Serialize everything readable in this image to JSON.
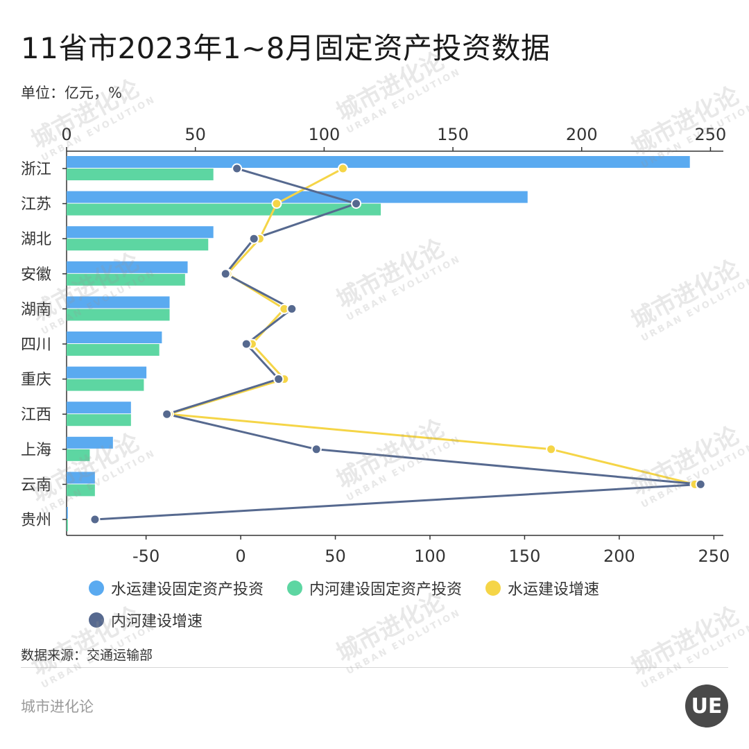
{
  "title": "11省市2023年1~8月固定资产投资数据",
  "unit": "单位：亿元，%",
  "source": "数据来源：交通运输部",
  "footer_brand": "城市进化论",
  "logo_text": "UE",
  "watermark": {
    "cn": "城市进化论",
    "en": "URBAN EVOLUTION"
  },
  "legend": [
    {
      "label": "水运建设固定资产投资",
      "color": "#5aaaf0"
    },
    {
      "label": "内河建设固定资产投资",
      "color": "#5dd6a2"
    },
    {
      "label": "水运建设增速",
      "color": "#f5d547"
    },
    {
      "label": "内河建设增速",
      "color": "#56698f"
    }
  ],
  "chart_data": {
    "type": "bar+line",
    "categories": [
      "浙江",
      "江苏",
      "湖北",
      "安徽",
      "湖南",
      "四川",
      "重庆",
      "江西",
      "上海",
      "云南",
      "贵州"
    ],
    "top_axis": {
      "range": [
        0,
        255
      ],
      "ticks": [
        0,
        50,
        100,
        150,
        200,
        250
      ]
    },
    "bottom_axis": {
      "range": [
        -92,
        255
      ],
      "ticks": [
        -50,
        0,
        50,
        100,
        150,
        200,
        250
      ]
    },
    "series": [
      {
        "name": "水运建设固定资产投资",
        "type": "bar",
        "axis": "top",
        "color": "#5aaaf0",
        "values": [
          242,
          179,
          57,
          47,
          40,
          37,
          31,
          25,
          18,
          11,
          0.5
        ]
      },
      {
        "name": "内河建设固定资产投资",
        "type": "bar",
        "axis": "top",
        "color": "#5dd6a2",
        "values": [
          57,
          122,
          55,
          46,
          40,
          36,
          30,
          25,
          9,
          11,
          0.5
        ]
      },
      {
        "name": "水运建设增速",
        "type": "line",
        "axis": "bottom",
        "color": "#f5d547",
        "values": [
          54,
          19,
          10,
          -7,
          23,
          6,
          23,
          -38,
          164,
          240,
          null
        ]
      },
      {
        "name": "内河建设增速",
        "type": "line",
        "axis": "bottom",
        "color": "#56698f",
        "values": [
          -2,
          61,
          7,
          -8,
          27,
          3,
          20,
          -39,
          40,
          243,
          -77
        ]
      }
    ]
  }
}
